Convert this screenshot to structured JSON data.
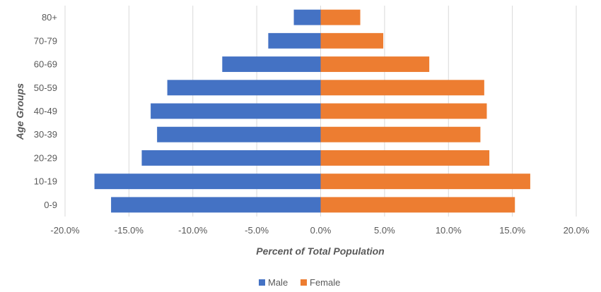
{
  "chart_data": {
    "type": "bar",
    "orientation": "horizontal",
    "categories": [
      "0-9",
      "10-19",
      "20-29",
      "30-39",
      "40-49",
      "50-59",
      "60-69",
      "70-79",
      "80+"
    ],
    "series": [
      {
        "name": "Male",
        "color": "#4472C4",
        "values": [
          -16.4,
          -17.7,
          -14.0,
          -12.8,
          -13.3,
          -12.0,
          -7.7,
          -4.1,
          -2.1
        ]
      },
      {
        "name": "Female",
        "color": "#ED7D31",
        "values": [
          15.2,
          16.4,
          13.2,
          12.5,
          13.0,
          12.8,
          8.5,
          4.9,
          3.1
        ]
      }
    ],
    "xlabel": "Percent of Total Population",
    "ylabel": "Age Groups",
    "xlim": [
      -20,
      20
    ],
    "x_ticks": [
      "-20.0%",
      "-15.0%",
      "-10.0%",
      "-5.0%",
      "0.0%",
      "5.0%",
      "10.0%",
      "15.0%",
      "20.0%"
    ],
    "grid": "vertical",
    "legend_position": "bottom"
  }
}
